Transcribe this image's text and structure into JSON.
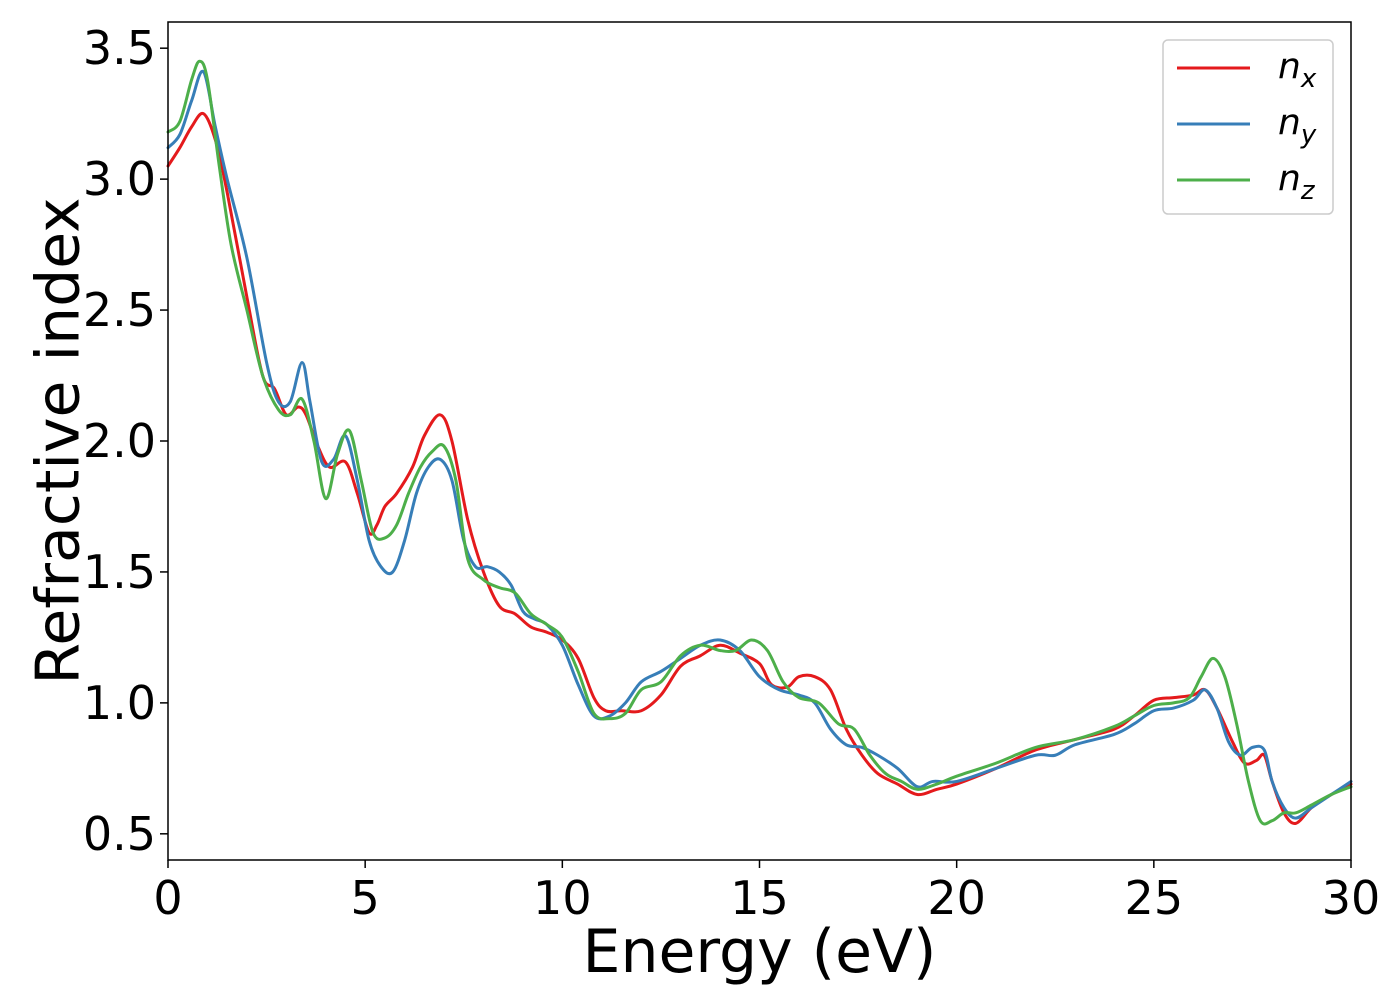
{
  "chart_data": {
    "type": "line",
    "xlabel": "Energy (eV)",
    "ylabel": "Refractive index",
    "xlim": [
      0,
      30
    ],
    "ylim": [
      0.4,
      3.6
    ],
    "xticks": [
      0,
      5,
      10,
      15,
      20,
      25,
      30
    ],
    "xtick_labels": [
      "0",
      "5",
      "10",
      "15",
      "20",
      "25",
      "30"
    ],
    "yticks": [
      0.5,
      1.0,
      1.5,
      2.0,
      2.5,
      3.0,
      3.5
    ],
    "ytick_labels": [
      "0.5",
      "1.0",
      "1.5",
      "2.0",
      "2.5",
      "3.0",
      "3.5"
    ],
    "grid": false,
    "legend_position": "top-right",
    "series": [
      {
        "name": "n_x",
        "name_base": "n",
        "name_sub": "x",
        "color": "#e41a1c",
        "x": [
          0,
          0.3,
          0.6,
          0.9,
          1.2,
          1.5,
          2.0,
          2.4,
          2.7,
          3.0,
          3.3,
          3.5,
          3.8,
          4.1,
          4.5,
          4.8,
          5.1,
          5.3,
          5.5,
          5.8,
          6.2,
          6.5,
          6.9,
          7.2,
          7.6,
          8.0,
          8.4,
          8.8,
          9.2,
          9.6,
          10.0,
          10.4,
          10.8,
          11.1,
          11.5,
          12.0,
          12.5,
          13.0,
          13.5,
          14.0,
          14.5,
          15.0,
          15.3,
          15.7,
          16.0,
          16.4,
          16.8,
          17.2,
          17.6,
          18.0,
          18.5,
          19.0,
          19.5,
          20.0,
          21.0,
          22.0,
          23.0,
          24.0,
          24.5,
          25.0,
          25.5,
          26.0,
          26.3,
          26.6,
          27.0,
          27.3,
          27.6,
          27.8,
          28.0,
          28.3,
          28.6,
          29.0,
          29.5,
          30.0
        ],
        "y": [
          3.05,
          3.12,
          3.2,
          3.25,
          3.15,
          2.95,
          2.55,
          2.25,
          2.2,
          2.1,
          2.13,
          2.1,
          1.98,
          1.9,
          1.92,
          1.8,
          1.65,
          1.68,
          1.75,
          1.8,
          1.9,
          2.02,
          2.1,
          2.0,
          1.7,
          1.5,
          1.37,
          1.34,
          1.29,
          1.27,
          1.24,
          1.17,
          1.02,
          0.97,
          0.97,
          0.97,
          1.03,
          1.14,
          1.18,
          1.22,
          1.19,
          1.15,
          1.07,
          1.06,
          1.1,
          1.1,
          1.05,
          0.9,
          0.8,
          0.73,
          0.69,
          0.65,
          0.67,
          0.69,
          0.75,
          0.82,
          0.86,
          0.9,
          0.95,
          1.01,
          1.02,
          1.03,
          1.05,
          0.98,
          0.85,
          0.77,
          0.78,
          0.8,
          0.7,
          0.58,
          0.54,
          0.6,
          0.65,
          0.69
        ]
      },
      {
        "name": "n_y",
        "name_base": "n",
        "name_sub": "y",
        "color": "#377eb8",
        "x": [
          0,
          0.3,
          0.6,
          0.9,
          1.2,
          1.5,
          2.0,
          2.5,
          2.8,
          3.1,
          3.4,
          3.6,
          3.9,
          4.2,
          4.5,
          4.8,
          5.1,
          5.4,
          5.7,
          6.0,
          6.3,
          6.6,
          6.9,
          7.2,
          7.5,
          7.8,
          8.1,
          8.4,
          8.7,
          9.0,
          9.3,
          9.6,
          10.0,
          10.4,
          10.8,
          11.2,
          11.6,
          12.0,
          12.5,
          13.0,
          13.5,
          14.0,
          14.5,
          15.0,
          15.5,
          16.0,
          16.4,
          16.8,
          17.2,
          17.6,
          18.0,
          18.5,
          19.0,
          19.4,
          20.0,
          21.0,
          22.0,
          22.5,
          23.0,
          24.0,
          24.5,
          25.0,
          25.5,
          26.0,
          26.3,
          26.6,
          26.9,
          27.2,
          27.5,
          27.8,
          28.0,
          28.3,
          28.6,
          29.0,
          29.5,
          30.0
        ],
        "y": [
          3.12,
          3.17,
          3.3,
          3.41,
          3.2,
          3.0,
          2.7,
          2.3,
          2.15,
          2.15,
          2.3,
          2.15,
          1.92,
          1.93,
          2.02,
          1.85,
          1.62,
          1.52,
          1.5,
          1.62,
          1.8,
          1.9,
          1.93,
          1.85,
          1.62,
          1.52,
          1.52,
          1.5,
          1.45,
          1.35,
          1.32,
          1.3,
          1.22,
          1.07,
          0.95,
          0.95,
          1.0,
          1.08,
          1.12,
          1.17,
          1.22,
          1.24,
          1.2,
          1.1,
          1.05,
          1.03,
          1.0,
          0.9,
          0.84,
          0.83,
          0.8,
          0.75,
          0.68,
          0.7,
          0.7,
          0.75,
          0.8,
          0.8,
          0.84,
          0.88,
          0.92,
          0.97,
          0.98,
          1.01,
          1.05,
          0.98,
          0.85,
          0.8,
          0.83,
          0.82,
          0.7,
          0.6,
          0.56,
          0.6,
          0.65,
          0.7
        ]
      },
      {
        "name": "n_z",
        "name_base": "n",
        "name_sub": "z",
        "color": "#4daf4a",
        "x": [
          0,
          0.3,
          0.6,
          0.8,
          1.0,
          1.3,
          1.6,
          2.0,
          2.4,
          2.8,
          3.1,
          3.4,
          3.7,
          4.0,
          4.3,
          4.6,
          4.9,
          5.2,
          5.5,
          5.8,
          6.1,
          6.4,
          6.7,
          7.0,
          7.3,
          7.6,
          8.0,
          8.4,
          8.8,
          9.2,
          9.6,
          10.0,
          10.4,
          10.8,
          11.2,
          11.6,
          12.0,
          12.5,
          13.0,
          13.5,
          14.0,
          14.4,
          14.8,
          15.2,
          15.6,
          16.0,
          16.5,
          17.0,
          17.4,
          17.8,
          18.2,
          18.6,
          19.0,
          19.5,
          20.0,
          21.0,
          22.0,
          23.0,
          24.0,
          24.5,
          25.0,
          25.5,
          25.9,
          26.2,
          26.5,
          26.8,
          27.1,
          27.4,
          27.7,
          28.0,
          28.3,
          28.6,
          29.0,
          29.5,
          30.0
        ],
        "y": [
          3.18,
          3.22,
          3.38,
          3.45,
          3.38,
          3.05,
          2.75,
          2.5,
          2.25,
          2.12,
          2.1,
          2.16,
          2.0,
          1.78,
          1.95,
          2.04,
          1.85,
          1.65,
          1.63,
          1.68,
          1.8,
          1.9,
          1.96,
          1.98,
          1.85,
          1.55,
          1.47,
          1.44,
          1.42,
          1.34,
          1.3,
          1.25,
          1.12,
          0.96,
          0.94,
          0.96,
          1.05,
          1.08,
          1.18,
          1.22,
          1.2,
          1.2,
          1.24,
          1.2,
          1.08,
          1.02,
          1.0,
          0.92,
          0.9,
          0.8,
          0.73,
          0.7,
          0.67,
          0.69,
          0.72,
          0.77,
          0.83,
          0.86,
          0.91,
          0.95,
          0.99,
          1.0,
          1.02,
          1.1,
          1.17,
          1.1,
          0.92,
          0.7,
          0.55,
          0.55,
          0.58,
          0.58,
          0.61,
          0.65,
          0.68
        ]
      }
    ]
  }
}
